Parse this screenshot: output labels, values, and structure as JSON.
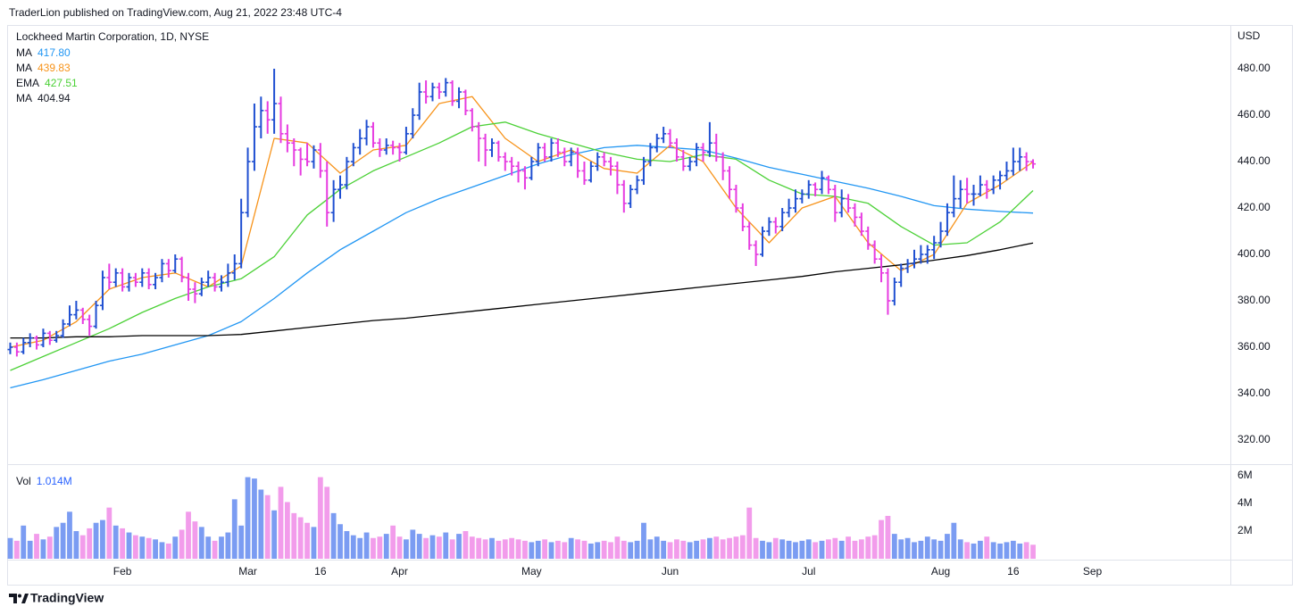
{
  "header": {
    "published": "TraderLion published on TradingView.com, Aug 21, 2022 23:48 UTC-4"
  },
  "footer": {
    "brand": "TradingView"
  },
  "chart_data": {
    "type": "ohlc",
    "title": "Lockheed Martin Corporation, 1D, NYSE",
    "currency": "USD",
    "up_color": "#1f4fd1",
    "down_color": "#e63be0",
    "xlim": [
      2.8,
      187.9
    ],
    "xticks": [
      {
        "value": 20,
        "label": "Feb"
      },
      {
        "value": 39,
        "label": "Mar"
      },
      {
        "value": 50,
        "label": "16"
      },
      {
        "value": 62,
        "label": "Apr"
      },
      {
        "value": 82,
        "label": "May"
      },
      {
        "value": 103,
        "label": "Jun"
      },
      {
        "value": 124,
        "label": "Jul"
      },
      {
        "value": 144,
        "label": "Aug"
      },
      {
        "value": 155,
        "label": "16"
      },
      {
        "value": 167,
        "label": "Sep"
      }
    ],
    "ylim": [
      309.6,
      498.1
    ],
    "yticks": [
      {
        "value": 320,
        "label": "320.00"
      },
      {
        "value": 340,
        "label": "340.00"
      },
      {
        "value": 360,
        "label": "360.00"
      },
      {
        "value": 380,
        "label": "380.00"
      },
      {
        "value": 400,
        "label": "400.00"
      },
      {
        "value": 420,
        "label": "420.00"
      },
      {
        "value": 440,
        "label": "440.00"
      },
      {
        "value": 460,
        "label": "460.00"
      },
      {
        "value": 480,
        "label": "480.00"
      }
    ],
    "grid": false,
    "x": [
      3,
      4,
      5,
      6,
      7,
      8,
      9,
      10,
      11,
      12,
      13,
      14,
      15,
      16,
      17,
      18,
      19,
      20,
      21,
      22,
      23,
      24,
      25,
      26,
      27,
      28,
      29,
      30,
      31,
      32,
      33,
      34,
      35,
      36,
      37,
      38,
      39,
      40,
      41,
      42,
      43,
      44,
      45,
      46,
      47,
      48,
      49,
      50,
      51,
      52,
      53,
      54,
      55,
      56,
      57,
      58,
      59,
      60,
      61,
      62,
      63,
      64,
      65,
      66,
      67,
      68,
      69,
      70,
      71,
      72,
      73,
      74,
      75,
      76,
      77,
      78,
      79,
      80,
      81,
      82,
      83,
      84,
      85,
      86,
      87,
      88,
      89,
      90,
      91,
      92,
      93,
      94,
      95,
      96,
      97,
      98,
      99,
      100,
      101,
      102,
      103,
      104,
      105,
      106,
      107,
      108,
      109,
      110,
      111,
      112,
      113,
      114,
      115,
      116,
      117,
      118,
      119,
      120,
      121,
      122,
      123,
      124,
      125,
      126,
      127,
      128,
      129,
      130,
      131,
      132,
      133,
      134,
      135,
      136,
      137,
      138,
      139,
      140,
      141,
      142,
      143,
      144,
      145,
      146,
      147,
      148,
      149,
      150,
      151,
      152,
      153,
      154,
      155,
      156,
      157,
      158
    ],
    "open": [
      359,
      360,
      358,
      362,
      364,
      361,
      366,
      363,
      365,
      370,
      374,
      376,
      372,
      369,
      378,
      390,
      388,
      392,
      386,
      390,
      388,
      392,
      387,
      390,
      396,
      393,
      398,
      390,
      385,
      383,
      388,
      390,
      386,
      388,
      392,
      396,
      418,
      440,
      455,
      462,
      458,
      465,
      452,
      448,
      445,
      441,
      440,
      445,
      436,
      418,
      428,
      430,
      440,
      446,
      450,
      455,
      448,
      445,
      447,
      446,
      444,
      452,
      460,
      470,
      468,
      472,
      470,
      474,
      466,
      470,
      462,
      455,
      450,
      445,
      448,
      442,
      440,
      438,
      436,
      433,
      440,
      446,
      442,
      448,
      444,
      440,
      444,
      436,
      432,
      438,
      442,
      440,
      438,
      430,
      422,
      428,
      432,
      440,
      446,
      450,
      452,
      448,
      442,
      438,
      440,
      446,
      444,
      448,
      442,
      436,
      428,
      420,
      412,
      404,
      400,
      410,
      414,
      412,
      418,
      420,
      424,
      426,
      430,
      428,
      433,
      428,
      418,
      424,
      420,
      416,
      410,
      404,
      398,
      392,
      380,
      388,
      394,
      396,
      398,
      400,
      402,
      405,
      410,
      418,
      424,
      428,
      426,
      426,
      430,
      428,
      432,
      434,
      436,
      440,
      442,
      440
    ],
    "high": [
      362,
      362,
      364,
      366,
      365,
      368,
      367,
      367,
      372,
      378,
      380,
      377,
      374,
      380,
      393,
      396,
      394,
      394,
      392,
      392,
      394,
      394,
      392,
      398,
      398,
      400,
      399,
      392,
      388,
      390,
      393,
      392,
      391,
      396,
      400,
      424,
      446,
      465,
      468,
      466,
      480,
      468,
      456,
      450,
      446,
      448,
      447,
      448,
      440,
      432,
      434,
      442,
      448,
      454,
      458,
      457,
      450,
      450,
      449,
      448,
      455,
      463,
      474,
      475,
      474,
      474,
      476,
      475,
      472,
      471,
      463,
      457,
      452,
      450,
      449,
      444,
      442,
      440,
      438,
      442,
      448,
      448,
      450,
      450,
      446,
      446,
      446,
      440,
      440,
      444,
      444,
      442,
      440,
      432,
      430,
      434,
      442,
      448,
      452,
      455,
      454,
      450,
      445,
      442,
      448,
      448,
      457,
      452,
      444,
      438,
      430,
      422,
      414,
      406,
      412,
      416,
      416,
      420,
      424,
      428,
      428,
      432,
      431,
      436,
      434,
      430,
      428,
      426,
      422,
      418,
      412,
      406,
      400,
      394,
      390,
      396,
      398,
      402,
      404,
      404,
      408,
      414,
      422,
      434,
      432,
      433,
      430,
      434,
      432,
      434,
      436,
      440,
      446,
      446,
      444,
      441
    ],
    "low": [
      357,
      356,
      357,
      360,
      359,
      360,
      361,
      362,
      364,
      369,
      372,
      370,
      365,
      368,
      376,
      385,
      386,
      384,
      384,
      386,
      386,
      385,
      385,
      388,
      390,
      392,
      388,
      380,
      379,
      382,
      386,
      384,
      384,
      386,
      389,
      394,
      416,
      436,
      450,
      452,
      452,
      448,
      444,
      438,
      434,
      438,
      437,
      433,
      412,
      414,
      424,
      428,
      438,
      443,
      447,
      446,
      442,
      443,
      443,
      440,
      443,
      450,
      458,
      465,
      466,
      467,
      468,
      464,
      463,
      460,
      453,
      440,
      438,
      442,
      440,
      436,
      434,
      431,
      428,
      432,
      438,
      440,
      440,
      442,
      438,
      438,
      433,
      430,
      431,
      436,
      438,
      434,
      426,
      418,
      420,
      426,
      430,
      438,
      444,
      448,
      446,
      440,
      436,
      436,
      438,
      440,
      442,
      440,
      432,
      424,
      418,
      410,
      402,
      395,
      399,
      408,
      409,
      410,
      416,
      418,
      422,
      424,
      425,
      426,
      426,
      414,
      416,
      418,
      412,
      408,
      402,
      396,
      388,
      374,
      378,
      386,
      392,
      394,
      396,
      396,
      398,
      403,
      408,
      416,
      420,
      422,
      421,
      425,
      424,
      426,
      428,
      432,
      434,
      436,
      436,
      437
    ],
    "close": [
      360,
      358,
      362,
      364,
      361,
      366,
      363,
      365,
      370,
      374,
      376,
      372,
      369,
      378,
      390,
      388,
      392,
      386,
      390,
      388,
      392,
      387,
      390,
      396,
      393,
      398,
      390,
      385,
      383,
      388,
      390,
      386,
      388,
      392,
      396,
      418,
      440,
      455,
      462,
      458,
      465,
      452,
      448,
      445,
      441,
      440,
      445,
      436,
      418,
      428,
      430,
      440,
      446,
      450,
      455,
      448,
      445,
      447,
      446,
      444,
      452,
      460,
      470,
      468,
      472,
      470,
      474,
      466,
      470,
      462,
      455,
      450,
      445,
      448,
      442,
      440,
      438,
      436,
      433,
      440,
      446,
      442,
      448,
      444,
      440,
      444,
      436,
      432,
      438,
      442,
      440,
      438,
      430,
      422,
      428,
      432,
      440,
      446,
      450,
      452,
      448,
      442,
      438,
      440,
      446,
      444,
      448,
      442,
      436,
      428,
      420,
      412,
      404,
      400,
      410,
      414,
      412,
      418,
      420,
      424,
      426,
      430,
      428,
      433,
      428,
      418,
      424,
      420,
      416,
      410,
      404,
      398,
      392,
      380,
      388,
      394,
      396,
      398,
      400,
      402,
      405,
      410,
      418,
      424,
      428,
      426,
      426,
      430,
      428,
      432,
      434,
      436,
      440,
      442,
      440,
      439
    ],
    "series": [
      {
        "name": "MA",
        "value_label": "417.80",
        "color": "#2196f3",
        "x": [
          3,
          8,
          13,
          18,
          23,
          28,
          33,
          38,
          43,
          48,
          53,
          58,
          63,
          68,
          73,
          78,
          83,
          88,
          93,
          98,
          103,
          108,
          113,
          118,
          123,
          128,
          133,
          138,
          143,
          148,
          153,
          158
        ],
        "values": [
          342.5,
          346,
          350,
          354,
          357,
          361,
          365,
          371,
          381,
          392,
          402,
          410,
          418,
          424,
          429,
          434,
          439,
          443,
          446,
          447,
          446,
          445,
          441.5,
          437.5,
          434.5,
          431.5,
          428.5,
          425,
          421,
          419.5,
          418.5,
          417.8
        ]
      },
      {
        "name": "MA",
        "value_label": "439.83",
        "color": "#f7931a",
        "x": [
          3,
          8,
          13,
          18,
          23,
          28,
          33,
          38,
          43,
          48,
          53,
          58,
          63,
          68,
          73,
          78,
          83,
          88,
          93,
          98,
          103,
          108,
          113,
          118,
          123,
          128,
          133,
          138,
          143,
          148,
          153,
          158
        ],
        "values": [
          360,
          363,
          371,
          385,
          390,
          392,
          386,
          395,
          450,
          448,
          435,
          445,
          447,
          465,
          468,
          450,
          440,
          445,
          437,
          435,
          447,
          440,
          420,
          405,
          420,
          425,
          405,
          393,
          400,
          422,
          430,
          439.83
        ]
      },
      {
        "name": "EMA",
        "value_label": "427.51",
        "color": "#4cd137",
        "x": [
          3,
          8,
          13,
          18,
          23,
          28,
          33,
          38,
          43,
          48,
          53,
          58,
          63,
          68,
          73,
          78,
          83,
          88,
          93,
          98,
          103,
          108,
          113,
          118,
          123,
          128,
          133,
          138,
          143,
          148,
          153,
          158
        ],
        "values": [
          350,
          356,
          362,
          368,
          375,
          381,
          386,
          389.5,
          399,
          417,
          428,
          436,
          442,
          448,
          455,
          457,
          452,
          448,
          444,
          441,
          440,
          443,
          441,
          432,
          426,
          425,
          422,
          412,
          404,
          405,
          414,
          427.51
        ]
      },
      {
        "name": "MA",
        "value_label": "404.94",
        "color": "#000000",
        "x": [
          3,
          8,
          13,
          18,
          23,
          28,
          33,
          38,
          43,
          48,
          53,
          58,
          63,
          68,
          73,
          78,
          83,
          88,
          93,
          98,
          103,
          108,
          113,
          118,
          123,
          128,
          133,
          138,
          143,
          148,
          153,
          158
        ],
        "values": [
          364,
          364,
          364.5,
          364.5,
          365,
          365,
          365,
          365.5,
          367,
          368.5,
          370,
          371.5,
          372.5,
          374,
          375.5,
          377,
          378.5,
          380,
          381.5,
          383,
          384.5,
          386,
          387.5,
          389,
          390.5,
          392.5,
          394,
          395.5,
          397.5,
          399.5,
          402,
          404.94
        ]
      }
    ],
    "volume": {
      "name": "Vol",
      "value_label": "1.014M",
      "label_color": "#2962ff",
      "up_color": "#7b9cf2",
      "down_color": "#f29ceb",
      "values": [
        1.5,
        1.3,
        2.4,
        1.3,
        1.8,
        1.4,
        1.6,
        2.3,
        2.6,
        3.4,
        2.0,
        1.7,
        2.2,
        2.6,
        2.8,
        3.7,
        2.4,
        2.2,
        1.9,
        1.7,
        1.6,
        1.5,
        1.4,
        1.2,
        1.1,
        1.6,
        2.1,
        3.4,
        2.7,
        2.3,
        1.6,
        1.3,
        1.6,
        1.9,
        4.3,
        2.4,
        5.9,
        5.8,
        5.0,
        4.6,
        3.5,
        5.2,
        4.1,
        3.3,
        3.0,
        2.6,
        2.3,
        5.9,
        5.2,
        3.3,
        2.5,
        2.0,
        1.7,
        1.5,
        1.9,
        1.5,
        1.6,
        1.8,
        2.4,
        1.6,
        1.4,
        2.1,
        1.8,
        1.5,
        1.7,
        1.6,
        1.9,
        1.4,
        1.8,
        2.0,
        1.6,
        1.5,
        1.4,
        1.5,
        1.3,
        1.4,
        1.5,
        1.4,
        1.3,
        1.2,
        1.3,
        1.4,
        1.2,
        1.3,
        1.2,
        1.5,
        1.4,
        1.3,
        1.1,
        1.2,
        1.3,
        1.2,
        1.6,
        1.3,
        1.2,
        1.3,
        2.6,
        1.4,
        1.6,
        1.3,
        1.2,
        1.4,
        1.3,
        1.2,
        1.3,
        1.4,
        1.5,
        1.6,
        1.4,
        1.5,
        1.6,
        1.7,
        3.7,
        1.5,
        1.3,
        1.2,
        1.5,
        1.4,
        1.3,
        1.2,
        1.3,
        1.4,
        1.2,
        1.3,
        1.4,
        1.5,
        1.3,
        1.6,
        1.3,
        1.4,
        1.6,
        1.7,
        2.8,
        3.1,
        1.8,
        1.4,
        1.5,
        1.2,
        1.3,
        1.6,
        1.4,
        1.3,
        1.8,
        2.6,
        1.4,
        1.2,
        1.1,
        1.3,
        1.6,
        1.2,
        1.1,
        1.2,
        1.3,
        1.1,
        1.2,
        1.014
      ]
    },
    "y2lim": [
      0,
      6.84
    ],
    "y2ticks": [
      {
        "value": 2,
        "label": "2M"
      },
      {
        "value": 4,
        "label": "4M"
      },
      {
        "value": 6,
        "label": "6M"
      }
    ]
  }
}
